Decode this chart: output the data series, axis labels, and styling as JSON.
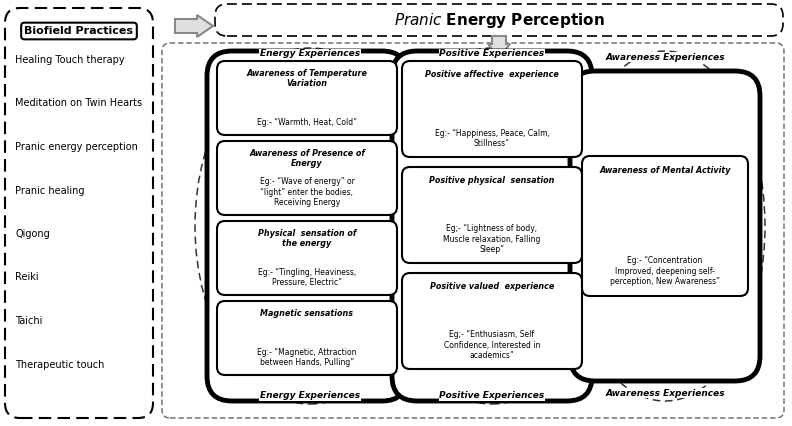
{
  "biofield_label": "Biofield Practices",
  "biofield_items": [
    "Healing Touch therapy",
    "Meditation on Twin Hearts",
    "Pranic energy perception",
    "Pranic healing",
    "Qigong",
    "Reiki",
    "Taichi",
    "Therapeutic touch"
  ],
  "ellipse1_label": "Energy Experiences",
  "ellipse2_label": "Positive Experiences",
  "ellipse3_label": "Awareness Experiences",
  "col1_boxes": [
    {
      "title": "Awareness of Temperature\nVariation",
      "body": "Eg:- “Warmth, Heat, Cold”"
    },
    {
      "title": "Awareness of Presence of\nEnergy",
      "body": "Eg:- “Wave of energy” or\n“light” enter the bodies,\nReceiving Energy"
    },
    {
      "title": "Physical  sensation of\nthe energy",
      "body": "Eg:- “Tingling, Heaviness,\nPressure, Electric”"
    },
    {
      "title": "Magnetic sensations",
      "body": "Eg:- “Magnetic, Attraction\nbetween Hands, Pulling”"
    }
  ],
  "col2_boxes": [
    {
      "title": "Positive affective  experience",
      "body": "Eg:- “Happiness, Peace, Calm,\nStillness”"
    },
    {
      "title": "Positive physical  sensation",
      "body": "Eg;- “Lightness of body,\nMuscle relaxation, Falling\nSleep”"
    },
    {
      "title": "Positive valued  experience",
      "body": "Eg;- “Enthusiasm, Self\nConfidence, Interested in\nacademics”"
    }
  ],
  "col3_boxes": [
    {
      "title": "Awareness of Mental Activity",
      "body": "Eg:- “Concentration\nImproved, deepening self-\nperception, New Awareness”"
    }
  ]
}
